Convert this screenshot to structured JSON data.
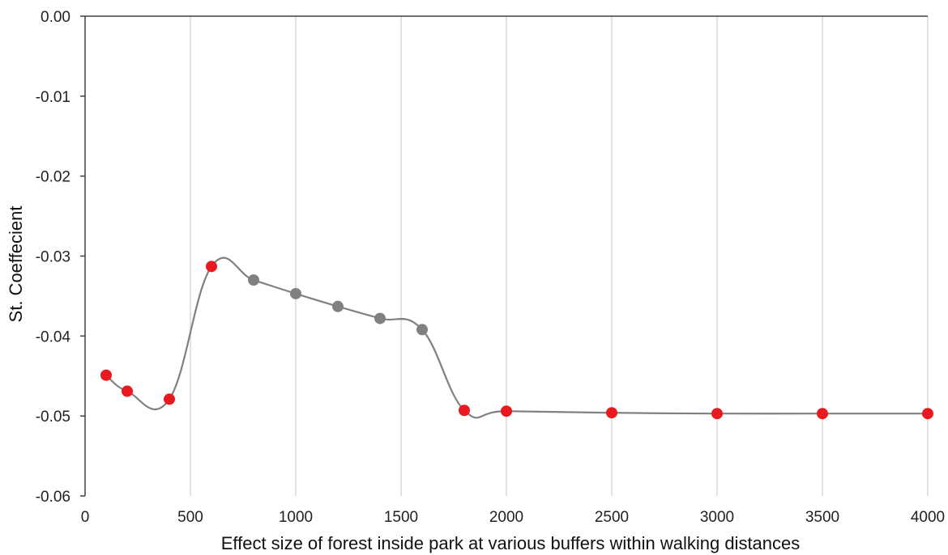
{
  "chart_data": {
    "type": "scatter",
    "xlabel": "Effect size of forest inside park at various buffers within walking distances",
    "ylabel": "St. Coeffecient",
    "xlim": [
      0,
      4000
    ],
    "ylim": [
      -0.06,
      0.0
    ],
    "x_ticks": [
      0,
      500,
      1000,
      1500,
      2000,
      2500,
      3000,
      3500,
      4000
    ],
    "x_tick_labels": [
      "0",
      "500",
      "1000",
      "1500",
      "2000",
      "2500",
      "3000",
      "3500",
      "4000"
    ],
    "y_ticks": [
      0.0,
      -0.01,
      -0.02,
      -0.03,
      -0.04,
      -0.05,
      -0.06
    ],
    "y_tick_labels": [
      "0.00",
      "-0.01",
      "-0.02",
      "-0.03",
      "-0.04",
      "-0.05",
      "-0.06"
    ],
    "grid": "vertical",
    "line_style": "smooth",
    "points": [
      {
        "x": 100,
        "y": -0.0449,
        "color": "#e8191f"
      },
      {
        "x": 200,
        "y": -0.0469,
        "color": "#e8191f"
      },
      {
        "x": 400,
        "y": -0.0479,
        "color": "#e8191f"
      },
      {
        "x": 600,
        "y": -0.0313,
        "color": "#e8191f"
      },
      {
        "x": 800,
        "y": -0.033,
        "color": "#808080"
      },
      {
        "x": 1000,
        "y": -0.0347,
        "color": "#808080"
      },
      {
        "x": 1200,
        "y": -0.0363,
        "color": "#808080"
      },
      {
        "x": 1400,
        "y": -0.0378,
        "color": "#808080"
      },
      {
        "x": 1600,
        "y": -0.0392,
        "color": "#808080"
      },
      {
        "x": 1800,
        "y": -0.0493,
        "color": "#e8191f"
      },
      {
        "x": 2000,
        "y": -0.0494,
        "color": "#e8191f"
      },
      {
        "x": 2500,
        "y": -0.0496,
        "color": "#e8191f"
      },
      {
        "x": 3000,
        "y": -0.0497,
        "color": "#e8191f"
      },
      {
        "x": 3500,
        "y": -0.0497,
        "color": "#e8191f"
      },
      {
        "x": 4000,
        "y": -0.0497,
        "color": "#e8191f"
      }
    ],
    "colors": {
      "line": "#808080",
      "grid": "#d9d9d9",
      "axis": "#404040"
    }
  }
}
